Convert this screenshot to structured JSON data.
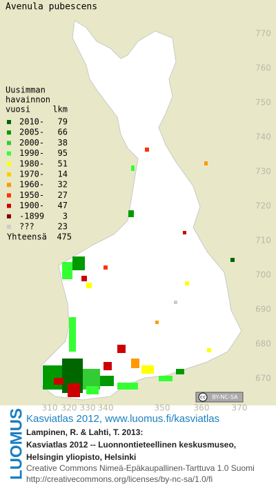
{
  "title": "Avenula pubescens",
  "legend": {
    "heading": [
      "Uusimman",
      "havainnon",
      "vuosi"
    ],
    "count_heading": "lkm",
    "rows": [
      {
        "label": "2010-",
        "count": 79,
        "color": "#006600"
      },
      {
        "label": "2005-",
        "count": 66,
        "color": "#009900"
      },
      {
        "label": "2000-",
        "count": 38,
        "color": "#33cc33"
      },
      {
        "label": "1990-",
        "count": 95,
        "color": "#33ff33"
      },
      {
        "label": "1980-",
        "count": 51,
        "color": "#ffff00"
      },
      {
        "label": "1970-",
        "count": 14,
        "color": "#ffcc00"
      },
      {
        "label": "1960-",
        "count": 32,
        "color": "#ff9900"
      },
      {
        "label": "1950-",
        "count": 27,
        "color": "#ff3300"
      },
      {
        "label": "1900-",
        "count": 47,
        "color": "#cc0000"
      },
      {
        "label": "-1899",
        "count": 3,
        "color": "#880000"
      },
      {
        "label": "???",
        "count": 23,
        "color": "#cccccc"
      }
    ],
    "total_label": "Yhteensä",
    "total": 475
  },
  "grid_labels": {
    "north": [
      770,
      760,
      750,
      740,
      730,
      720,
      710,
      700,
      690,
      680,
      670
    ],
    "east": [
      310,
      320,
      330,
      340,
      350,
      360,
      370
    ]
  },
  "license_badge": {
    "icon": "cc",
    "text": "BY-NC-SA"
  },
  "credits": {
    "link": "Kasviatlas 2012, www.luomus.fi/kasviatlas",
    "citation": [
      "Lampinen, R. & Lahti, T. 2013:",
      "Kasviatlas 2012 -- Luonnontieteellinen keskusmuseo,",
      "Helsingin yliopisto, Helsinki"
    ],
    "license": [
      "Creative Commons Nimeä-Epäkaupallinen-Tarttuva 1.0 Suomi",
      "http://creativecommons.org/licenses/by-nc-sa/1.0/fi"
    ]
  },
  "logo": "LUOMUS"
}
